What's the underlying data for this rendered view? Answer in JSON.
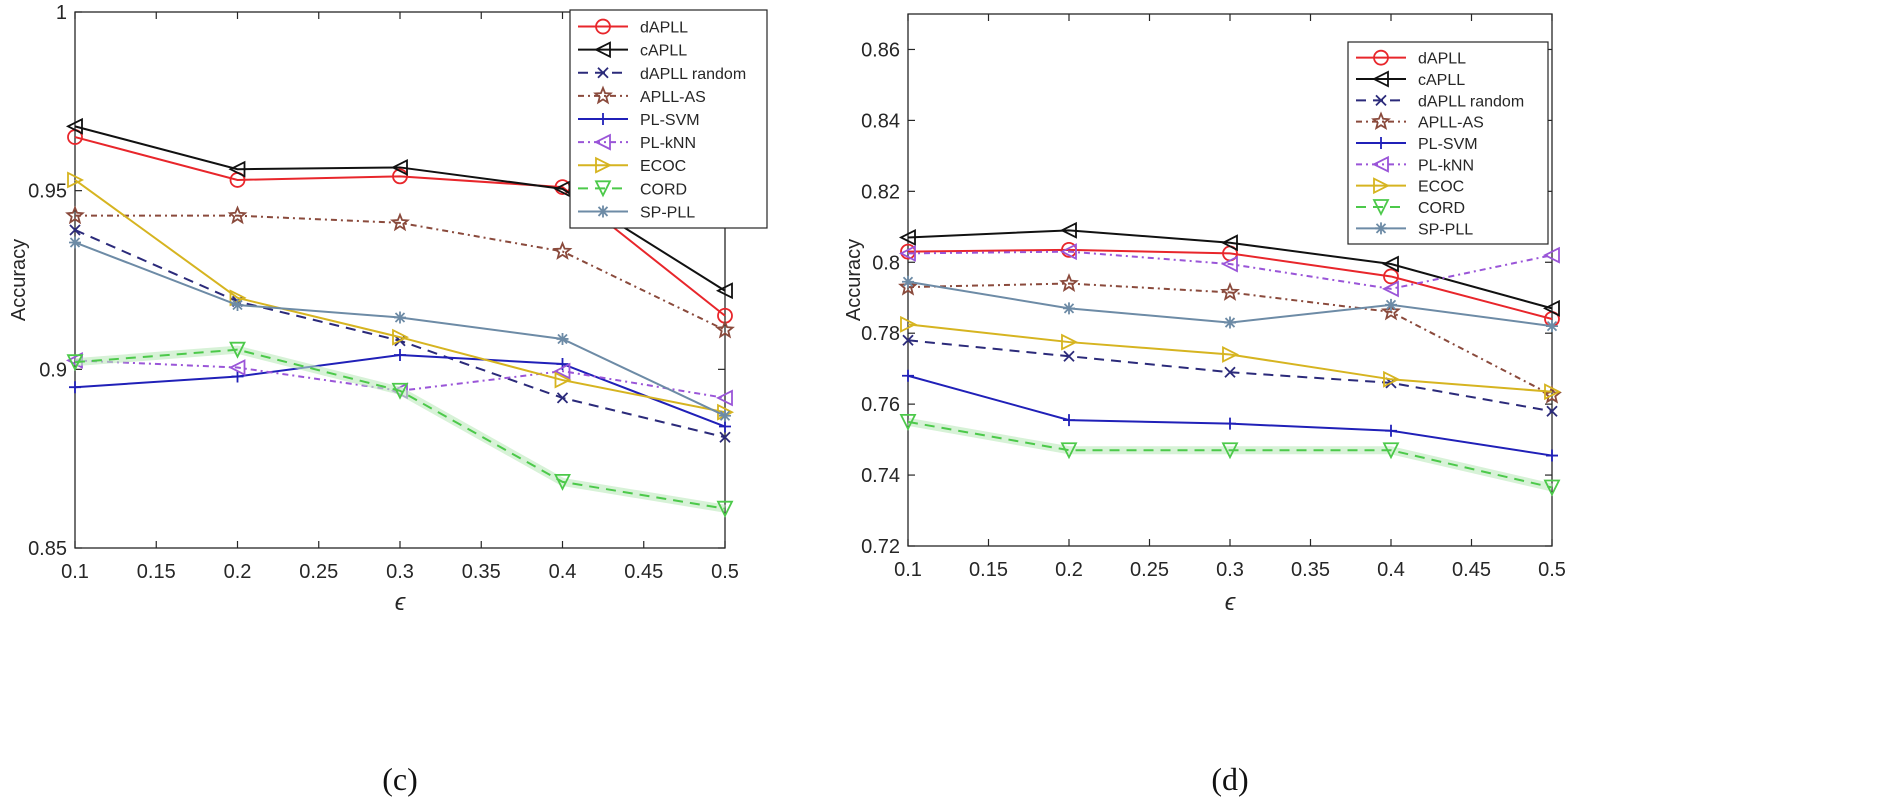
{
  "series_styles": [
    {
      "name": "dAPLL",
      "color": "#e8262b",
      "dash": "",
      "marker": "circle"
    },
    {
      "name": "cAPLL",
      "color": "#111111",
      "dash": "",
      "marker": "triangle-left"
    },
    {
      "name": "dAPLL random",
      "color": "#2b2a7a",
      "dash": "10,7",
      "marker": "x"
    },
    {
      "name": "APLL-AS",
      "color": "#8a4a3c",
      "dash": "6,4,2,4",
      "marker": "star"
    },
    {
      "name": "PL-SVM",
      "color": "#2020b8",
      "dash": "",
      "marker": "plus"
    },
    {
      "name": "PL-kNN",
      "color": "#9a55d8",
      "dash": "6,4,2,4",
      "marker": "triangle-left"
    },
    {
      "name": "ECOC",
      "color": "#d6b420",
      "dash": "",
      "marker": "triangle-right"
    },
    {
      "name": "CORD",
      "color": "#4cc94a",
      "dash": "10,7",
      "marker": "triangle-down"
    },
    {
      "name": "SP-PLL",
      "color": "#6d8ba6",
      "dash": "",
      "marker": "asterisk"
    }
  ],
  "chart_data": [
    {
      "type": "line",
      "caption": "(c)",
      "xlabel": "ϵ",
      "ylabel": "Accuracy",
      "xlim": [
        0.1,
        0.5
      ],
      "ylim": [
        0.85,
        1.0
      ],
      "xticks": [
        0.1,
        0.15,
        0.2,
        0.25,
        0.3,
        0.35,
        0.4,
        0.45,
        0.5
      ],
      "xtick_labels": [
        "0.1",
        "0.15",
        "0.2",
        "0.25",
        "0.3",
        "0.35",
        "0.4",
        "0.45",
        "0.5"
      ],
      "yticks": [
        0.85,
        0.9,
        0.95,
        1.0
      ],
      "ytick_labels": [
        "0.85",
        "0.9",
        "0.95",
        "1"
      ],
      "legend_position": "top-right",
      "x": [
        0.1,
        0.2,
        0.3,
        0.4,
        0.5
      ],
      "series": [
        {
          "name": "dAPLL",
          "values": [
            0.965,
            0.953,
            0.954,
            0.951,
            0.915
          ]
        },
        {
          "name": "cAPLL",
          "values": [
            0.968,
            0.956,
            0.9565,
            0.9505,
            0.922
          ]
        },
        {
          "name": "dAPLL random",
          "values": [
            0.939,
            0.919,
            0.908,
            0.892,
            0.881
          ]
        },
        {
          "name": "APLL-AS",
          "values": [
            0.943,
            0.943,
            0.941,
            0.933,
            0.911
          ]
        },
        {
          "name": "PL-SVM",
          "values": [
            0.895,
            0.898,
            0.904,
            0.9015,
            0.884
          ]
        },
        {
          "name": "PL-kNN",
          "values": [
            0.9025,
            0.9005,
            0.894,
            0.8995,
            0.892
          ]
        },
        {
          "name": "ECOC",
          "values": [
            0.953,
            0.92,
            0.909,
            0.897,
            0.888
          ]
        },
        {
          "name": "CORD",
          "values": [
            0.902,
            0.9055,
            0.894,
            0.8685,
            0.861
          ]
        },
        {
          "name": "SP-PLL",
          "values": [
            0.9355,
            0.918,
            0.9145,
            0.9085,
            0.887
          ]
        }
      ]
    },
    {
      "type": "line",
      "caption": "(d)",
      "xlabel": "ϵ",
      "ylabel": "Accuracy",
      "xlim": [
        0.1,
        0.5
      ],
      "ylim": [
        0.72,
        0.87
      ],
      "xticks": [
        0.1,
        0.15,
        0.2,
        0.25,
        0.3,
        0.35,
        0.4,
        0.45,
        0.5
      ],
      "xtick_labels": [
        "0.1",
        "0.15",
        "0.2",
        "0.25",
        "0.3",
        "0.35",
        "0.4",
        "0.45",
        "0.5"
      ],
      "yticks": [
        0.72,
        0.74,
        0.76,
        0.78,
        0.8,
        0.82,
        0.84,
        0.86
      ],
      "ytick_labels": [
        "0.72",
        "0.74",
        "0.76",
        "0.78",
        "0.8",
        "0.82",
        "0.84",
        "0.86"
      ],
      "legend_position": "top-right",
      "x": [
        0.1,
        0.2,
        0.3,
        0.4,
        0.5
      ],
      "series": [
        {
          "name": "dAPLL",
          "values": [
            0.803,
            0.8035,
            0.8025,
            0.796,
            0.784
          ]
        },
        {
          "name": "cAPLL",
          "values": [
            0.807,
            0.809,
            0.8055,
            0.7995,
            0.787
          ]
        },
        {
          "name": "dAPLL random",
          "values": [
            0.778,
            0.7735,
            0.769,
            0.766,
            0.758
          ]
        },
        {
          "name": "APLL-AS",
          "values": [
            0.793,
            0.794,
            0.7915,
            0.786,
            0.7625
          ]
        },
        {
          "name": "PL-SVM",
          "values": [
            0.768,
            0.7555,
            0.7545,
            0.7525,
            0.7455
          ]
        },
        {
          "name": "PL-kNN",
          "values": [
            0.8025,
            0.803,
            0.7995,
            0.7925,
            0.802
          ]
        },
        {
          "name": "ECOC",
          "values": [
            0.7825,
            0.7775,
            0.774,
            0.767,
            0.7635
          ]
        },
        {
          "name": "CORD",
          "values": [
            0.755,
            0.747,
            0.747,
            0.747,
            0.7365
          ]
        },
        {
          "name": "SP-PLL",
          "values": [
            0.7945,
            0.787,
            0.783,
            0.788,
            0.782
          ]
        }
      ]
    }
  ]
}
